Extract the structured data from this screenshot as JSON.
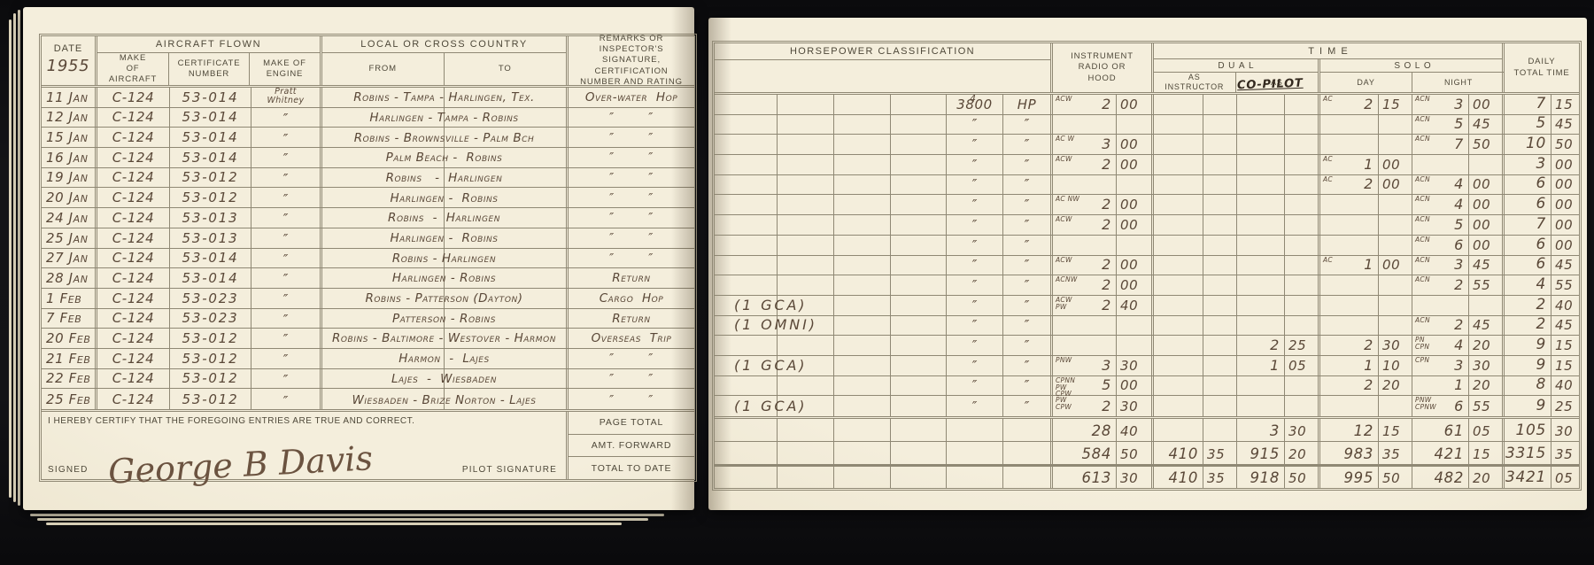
{
  "left_page": {
    "header": {
      "date_label": "DATE",
      "year": "1955",
      "aircraft_flown": "AIRCRAFT FLOWN",
      "make_of_aircraft": "MAKE\nOF\nAIRCRAFT",
      "certificate_number": "CERTIFICATE\nNUMBER",
      "make_of_engine": "MAKE OF\nENGINE",
      "local_or_cross_country": "LOCAL OR CROSS COUNTRY",
      "from": "FROM",
      "to": "TO",
      "remarks": "REMARKS OR INSPECTOR'S\nSIGNATURE, CERTIFICATION\nNUMBER AND RATING"
    },
    "rows": [
      {
        "date": "11 Jan",
        "make": "C-124",
        "cert": "53-014",
        "engine": "Pratt\nWhitney",
        "route": "Robins - Tampa - Harlingen, Tex.",
        "remark": "Over-water  Hop"
      },
      {
        "date": "12 Jan",
        "make": "C-124",
        "cert": "53-014",
        "engine": "″",
        "route": "Harlingen - Tampa - Robins",
        "remark": "″        ″"
      },
      {
        "date": "15 Jan",
        "make": "C-124",
        "cert": "53-014",
        "engine": "″",
        "route": "Robins - Brownsville - Palm Bch",
        "remark": "″        ″"
      },
      {
        "date": "16 Jan",
        "make": "C-124",
        "cert": "53-014",
        "engine": "″",
        "route": "Palm Beach -  Robins",
        "remark": "″        ″"
      },
      {
        "date": "19 Jan",
        "make": "C-124",
        "cert": "53-012",
        "engine": "″",
        "route": "Robins   -  Harlingen",
        "remark": "″        ″"
      },
      {
        "date": "20 Jan",
        "make": "C-124",
        "cert": "53-012",
        "engine": "″",
        "route": "Harlingen -  Robins",
        "remark": "″        ″"
      },
      {
        "date": "24 Jan",
        "make": "C-124",
        "cert": "53-013",
        "engine": "″",
        "route": "Robins  -  Harlingen",
        "remark": "″        ″"
      },
      {
        "date": "25 Jan",
        "make": "C-124",
        "cert": "53-013",
        "engine": "″",
        "route": "Harlingen -  Robins",
        "remark": "″        ″"
      },
      {
        "date": "27 Jan",
        "make": "C-124",
        "cert": "53-014",
        "engine": "″",
        "route": "Robins - Harlingen",
        "remark": "″        ″"
      },
      {
        "date": "28 Jan",
        "make": "C-124",
        "cert": "53-014",
        "engine": "″",
        "route": "Harlingen - Robins",
        "remark": "Return"
      },
      {
        "date": "1 Feb",
        "make": "C-124",
        "cert": "53-023",
        "engine": "″",
        "route": "Robins - Patterson (Dayton)",
        "remark": "Cargo  Hop"
      },
      {
        "date": "7 Feb",
        "make": "C-124",
        "cert": "53-023",
        "engine": "″",
        "route": "Patterson - Robins",
        "remark": "Return"
      },
      {
        "date": "20 Feb",
        "make": "C-124",
        "cert": "53-012",
        "engine": "″",
        "route": "Robins - Baltimore - Westover - Harmon",
        "remark": "Overseas  Trip"
      },
      {
        "date": "21 Feb",
        "make": "C-124",
        "cert": "53-012",
        "engine": "″",
        "route": "Harmon  -  Lajes",
        "remark": "″        ″"
      },
      {
        "date": "22 Feb",
        "make": "C-124",
        "cert": "53-012",
        "engine": "″",
        "route": "Lajes  -  Wiesbaden",
        "remark": "″        ″"
      },
      {
        "date": "25 Feb",
        "make": "C-124",
        "cert": "53-012",
        "engine": "″",
        "route": "Wiesbaden - Brize Norton - Lajes",
        "remark": "″        ″"
      }
    ],
    "footer": {
      "certify_text": "I HEREBY CERTIFY THAT THE FOREGOING ENTRIES ARE TRUE AND CORRECT.",
      "signed_label": "SIGNED",
      "signature": "George B Davis",
      "pilot_signature_label": "PILOT SIGNATURE",
      "totals_labels": [
        "PAGE TOTAL",
        "AMT. FORWARD",
        "TOTAL TO DATE"
      ]
    }
  },
  "right_page": {
    "header": {
      "horsepower_classification": "HORSEPOWER CLASSIFICATION",
      "instrument": "INSTRUMENT\nRADIO OR\nHOOD",
      "time": "TIME",
      "dual": "DUAL",
      "as_instructor": "AS\nINSTRUCTOR",
      "as_copilot_printed": "AS",
      "as_copilot_handwritten": "CO-PILOT",
      "solo": "SOLO",
      "day": "DAY",
      "night": "NIGHT",
      "daily_total": "DAILY\nTOTAL TIME"
    },
    "rows": [
      {
        "note": "",
        "hp_top": "4",
        "hp": "3800",
        "unit": "HP",
        "inst": {
          "c": "ACW",
          "h": "2",
          "m": "00"
        },
        "day": {
          "c": "AC",
          "h": "2",
          "m": "15"
        },
        "night": {
          "c": "ACN",
          "h": "3",
          "m": "00"
        },
        "total": {
          "h": "7",
          "m": "15"
        }
      },
      {
        "note": "",
        "hp": "″",
        "unit": "″",
        "night": {
          "c": "ACN",
          "h": "5",
          "m": "45"
        },
        "total": {
          "h": "5",
          "m": "45"
        }
      },
      {
        "note": "",
        "hp": "″",
        "unit": "″",
        "inst": {
          "c": "AC W",
          "h": "3",
          "m": "00"
        },
        "night": {
          "c": "ACN",
          "h": "7",
          "m": "50"
        },
        "total": {
          "h": "10",
          "m": "50"
        }
      },
      {
        "note": "",
        "hp": "″",
        "unit": "″",
        "inst": {
          "c": "ACW",
          "h": "2",
          "m": "00"
        },
        "day": {
          "c": "AC",
          "h": "1",
          "m": "00"
        },
        "total": {
          "h": "3",
          "m": "00"
        }
      },
      {
        "note": "",
        "hp": "″",
        "unit": "″",
        "day": {
          "c": "AC",
          "h": "2",
          "m": "00"
        },
        "night": {
          "c": "ACN",
          "h": "4",
          "m": "00"
        },
        "total": {
          "h": "6",
          "m": "00"
        }
      },
      {
        "note": "",
        "hp": "″",
        "unit": "″",
        "inst": {
          "c": "AC NW",
          "h": "2",
          "m": "00"
        },
        "night": {
          "c": "ACN",
          "h": "4",
          "m": "00"
        },
        "total": {
          "h": "6",
          "m": "00"
        }
      },
      {
        "note": "",
        "hp": "″",
        "unit": "″",
        "inst": {
          "c": "ACW",
          "h": "2",
          "m": "00"
        },
        "night": {
          "c": "ACN",
          "h": "5",
          "m": "00"
        },
        "total": {
          "h": "7",
          "m": "00"
        }
      },
      {
        "note": "",
        "hp": "″",
        "unit": "″",
        "night": {
          "c": "ACN",
          "h": "6",
          "m": "00"
        },
        "total": {
          "h": "6",
          "m": "00"
        }
      },
      {
        "note": "",
        "hp": "″",
        "unit": "″",
        "inst": {
          "c": "ACW",
          "h": "2",
          "m": "00"
        },
        "day": {
          "c": "AC",
          "h": "1",
          "m": "00"
        },
        "night": {
          "c": "ACN",
          "h": "3",
          "m": "45"
        },
        "total": {
          "h": "6",
          "m": "45"
        }
      },
      {
        "note": "",
        "hp": "″",
        "unit": "″",
        "inst": {
          "c": "ACNW",
          "h": "2",
          "m": "00"
        },
        "night": {
          "c": "ACN",
          "h": "2",
          "m": "55"
        },
        "total": {
          "h": "4",
          "m": "55"
        }
      },
      {
        "note": "(1 GCA)",
        "hp": "″",
        "unit": "″",
        "inst": {
          "c": "ACW\nPW",
          "h": "2",
          "m": "40"
        },
        "total": {
          "h": "2",
          "m": "40"
        }
      },
      {
        "note": "(1 OMNI)",
        "hp": "″",
        "unit": "″",
        "night": {
          "c": "ACN",
          "h": "2",
          "m": "45"
        },
        "total": {
          "h": "2",
          "m": "45"
        }
      },
      {
        "note": "",
        "hp": "″",
        "unit": "″",
        "cp": {
          "h": "2",
          "m": "25"
        },
        "day": {
          "h": "2",
          "m": "30"
        },
        "night": {
          "c": "PN\nCPN",
          "h": "4",
          "m": "20"
        },
        "total": {
          "h": "9",
          "m": "15"
        }
      },
      {
        "note": "(1 GCA)",
        "hp": "″",
        "unit": "″",
        "inst": {
          "c": "PNW",
          "h": "3",
          "m": "30"
        },
        "cp": {
          "h": "1",
          "m": "05"
        },
        "day": {
          "h": "1",
          "m": "10"
        },
        "night": {
          "c": "CPN",
          "h": "3",
          "m": "30"
        },
        "total": {
          "h": "9",
          "m": "15"
        }
      },
      {
        "note": "",
        "hp": "″",
        "unit": "″",
        "inst": {
          "c": "CPNN\nPW\nCPW",
          "h": "5",
          "m": "00"
        },
        "day": {
          "h": "2",
          "m": "20"
        },
        "night": {
          "h": "1",
          "m": "20"
        },
        "total": {
          "h": "8",
          "m": "40"
        }
      },
      {
        "note": "(1 GCA)",
        "hp": "″",
        "unit": "″",
        "inst": {
          "c": "PW\nCPW",
          "h": "2",
          "m": "30"
        },
        "night": {
          "c": "PNW\nCPNW",
          "h": "6",
          "m": "55"
        },
        "total": {
          "h": "9",
          "m": "25"
        }
      }
    ],
    "totals": [
      {
        "inst": {
          "h": "28",
          "m": "40"
        },
        "cp": {
          "h": "3",
          "m": "30"
        },
        "day": {
          "h": "12",
          "m": "15"
        },
        "night": {
          "h": "61",
          "m": "05"
        },
        "total": {
          "h": "105",
          "m": "30"
        }
      },
      {
        "inst": {
          "h": "584",
          "m": "50"
        },
        "instr": {
          "h": "410",
          "m": "35"
        },
        "cp": {
          "h": "915",
          "m": "20"
        },
        "day": {
          "h": "983",
          "m": "35"
        },
        "night": {
          "h": "421",
          "m": "15"
        },
        "total": {
          "h": "3315",
          "m": "35"
        }
      },
      {
        "inst": {
          "h": "613",
          "m": "30"
        },
        "instr": {
          "h": "410",
          "m": "35"
        },
        "cp": {
          "h": "918",
          "m": "50"
        },
        "day": {
          "h": "995",
          "m": "50"
        },
        "night": {
          "h": "482",
          "m": "20"
        },
        "total": {
          "h": "3421",
          "m": "05"
        }
      }
    ]
  }
}
